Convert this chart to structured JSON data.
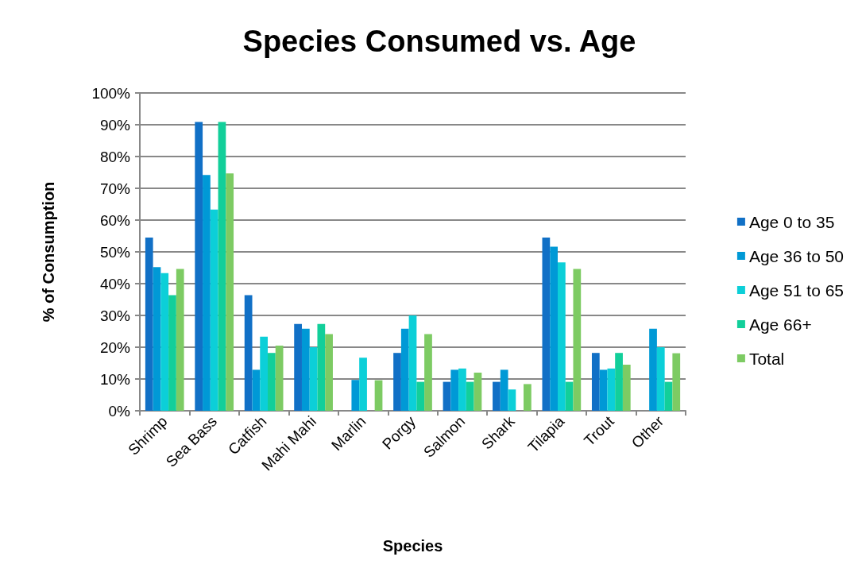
{
  "chart_data": {
    "type": "bar",
    "title": "Species Consumed vs. Age",
    "xlabel": "Species",
    "ylabel": "% of Consumption",
    "categories": [
      "Shrimp",
      "Sea Bass",
      "Catfish",
      "Mahi Mahi",
      "Marlin",
      "Porgy",
      "Salmon",
      "Shark",
      "Tilapia",
      "Trout",
      "Other"
    ],
    "series": [
      {
        "name": "Age 0 to 35",
        "color": "#1170c6",
        "values": [
          54.5,
          90.9,
          36.4,
          27.3,
          0,
          18.2,
          9.1,
          9.1,
          54.5,
          18.2,
          0
        ]
      },
      {
        "name": "Age 36 to 50",
        "color": "#0099d6",
        "values": [
          45.2,
          74.2,
          12.9,
          25.8,
          9.7,
          25.8,
          12.9,
          12.9,
          51.6,
          12.9,
          25.8
        ]
      },
      {
        "name": "Age 51 to 65",
        "color": "#0ccfd8",
        "values": [
          43.3,
          63.3,
          23.3,
          20,
          16.7,
          30,
          13.3,
          6.7,
          46.7,
          13.3,
          20
        ]
      },
      {
        "name": "Age 66+",
        "color": "#12cf9a",
        "values": [
          36.4,
          90.9,
          18.2,
          27.3,
          0,
          9.1,
          9.1,
          0,
          9.1,
          18.2,
          9.1
        ]
      },
      {
        "name": "Total",
        "color": "#7dcb63",
        "values": [
          44.6,
          74.7,
          20.5,
          24.1,
          9.6,
          24.1,
          12,
          8.4,
          44.6,
          14.5,
          18.1
        ]
      }
    ],
    "ylim": [
      0,
      100
    ],
    "yticks": [
      {
        "value": 0,
        "label": "0%"
      },
      {
        "value": 10,
        "label": "10%"
      },
      {
        "value": 20,
        "label": "20%"
      },
      {
        "value": 30,
        "label": "30%"
      },
      {
        "value": 40,
        "label": "40%"
      },
      {
        "value": 50,
        "label": "50%"
      },
      {
        "value": 60,
        "label": "60%"
      },
      {
        "value": 70,
        "label": "70%"
      },
      {
        "value": 80,
        "label": "80%"
      },
      {
        "value": 90,
        "label": "90%"
      },
      {
        "value": 100,
        "label": "100%"
      }
    ],
    "grid": "y",
    "legend": "right"
  }
}
